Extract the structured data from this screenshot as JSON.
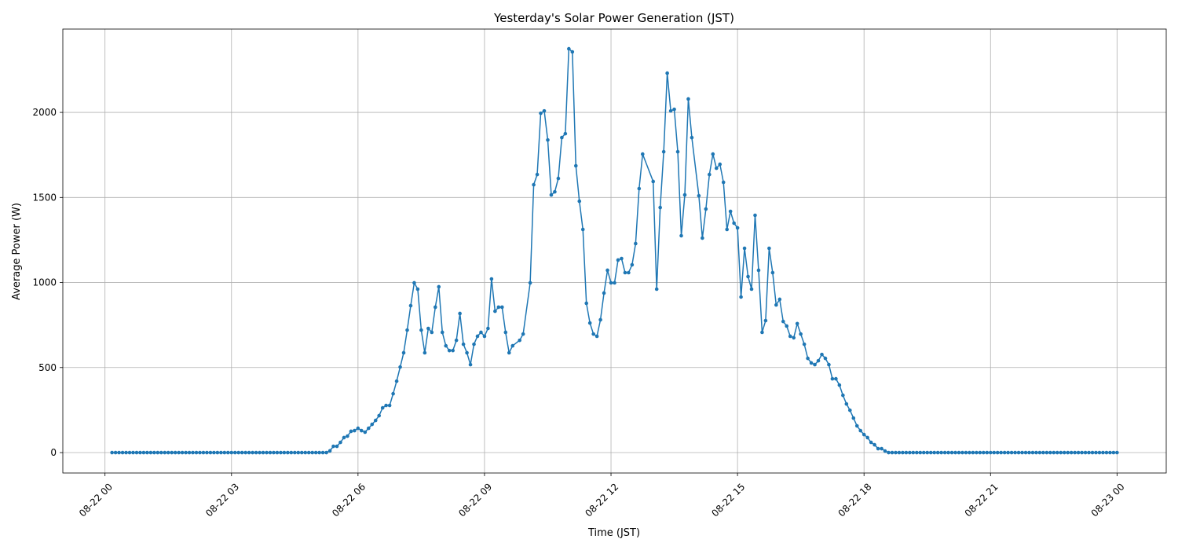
{
  "chart_data": {
    "type": "line",
    "title": "Yesterday's Solar Power Generation (JST)",
    "xlabel": "Time (JST)",
    "ylabel": "Average Power (W)",
    "color": "#1f77b4",
    "grid": true,
    "xlim": [
      -60,
      1510
    ],
    "ylim": [
      -120,
      2490
    ],
    "xticks": [
      {
        "value": 0,
        "label": "08-22 00"
      },
      {
        "value": 180,
        "label": "08-22 03"
      },
      {
        "value": 360,
        "label": "08-22 06"
      },
      {
        "value": 540,
        "label": "08-22 09"
      },
      {
        "value": 720,
        "label": "08-22 12"
      },
      {
        "value": 900,
        "label": "08-22 15"
      },
      {
        "value": 1080,
        "label": "08-22 18"
      },
      {
        "value": 1260,
        "label": "08-22 21"
      },
      {
        "value": 1440,
        "label": "08-23 00"
      }
    ],
    "yticks": [
      0,
      500,
      1000,
      1500,
      2000
    ],
    "x": [
      10,
      15,
      20,
      25,
      30,
      35,
      40,
      45,
      50,
      55,
      60,
      65,
      70,
      75,
      80,
      85,
      90,
      95,
      100,
      105,
      110,
      115,
      120,
      125,
      130,
      135,
      140,
      145,
      150,
      155,
      160,
      165,
      170,
      175,
      180,
      185,
      190,
      195,
      200,
      205,
      210,
      215,
      220,
      225,
      230,
      235,
      240,
      245,
      250,
      255,
      260,
      265,
      270,
      275,
      280,
      285,
      290,
      295,
      300,
      305,
      310,
      315,
      320,
      325,
      330,
      335,
      340,
      345,
      350,
      355,
      360,
      365,
      370,
      375,
      380,
      385,
      390,
      395,
      400,
      405,
      410,
      415,
      420,
      425,
      430,
      435,
      440,
      445,
      450,
      455,
      460,
      465,
      470,
      475,
      480,
      485,
      490,
      495,
      500,
      505,
      510,
      515,
      520,
      525,
      530,
      535,
      540,
      545,
      550,
      555,
      560,
      565,
      570,
      575,
      580,
      590,
      595,
      605,
      610,
      615,
      620,
      625,
      630,
      635,
      640,
      645,
      650,
      655,
      660,
      665,
      670,
      675,
      680,
      685,
      690,
      695,
      700,
      705,
      710,
      715,
      720,
      725,
      730,
      735,
      740,
      745,
      750,
      755,
      760,
      765,
      780,
      785,
      790,
      795,
      800,
      805,
      810,
      815,
      820,
      825,
      830,
      835,
      845,
      850,
      855,
      860,
      865,
      870,
      875,
      880,
      885,
      890,
      895,
      900,
      905,
      910,
      915,
      920,
      925,
      930,
      935,
      940,
      945,
      950,
      955,
      960,
      965,
      970,
      975,
      980,
      985,
      990,
      995,
      1000,
      1005,
      1010,
      1015,
      1020,
      1025,
      1030,
      1035,
      1040,
      1045,
      1050,
      1055,
      1060,
      1065,
      1070,
      1075,
      1080,
      1085,
      1090,
      1095,
      1100,
      1105,
      1110,
      1115,
      1120,
      1125,
      1130,
      1135,
      1140,
      1145,
      1150,
      1155,
      1160,
      1165,
      1170,
      1175,
      1180,
      1185,
      1190,
      1195,
      1200,
      1205,
      1210,
      1215,
      1220,
      1225,
      1230,
      1235,
      1240,
      1245,
      1250,
      1255,
      1260,
      1265,
      1270,
      1275,
      1280,
      1285,
      1290,
      1295,
      1300,
      1305,
      1310,
      1315,
      1320,
      1325,
      1330,
      1335,
      1340,
      1345,
      1350,
      1355,
      1360,
      1365,
      1370,
      1375,
      1380,
      1385,
      1390,
      1395,
      1400,
      1405,
      1410,
      1415,
      1420,
      1425,
      1430,
      1435,
      1440
    ],
    "values": [
      0,
      0,
      0,
      0,
      0,
      0,
      0,
      0,
      0,
      0,
      0,
      0,
      0,
      0,
      0,
      0,
      0,
      0,
      0,
      0,
      0,
      0,
      0,
      0,
      0,
      0,
      0,
      0,
      0,
      0,
      0,
      0,
      0,
      0,
      0,
      0,
      0,
      0,
      0,
      0,
      0,
      0,
      0,
      0,
      0,
      0,
      0,
      0,
      0,
      0,
      0,
      0,
      0,
      0,
      0,
      0,
      0,
      0,
      0,
      0,
      0,
      0,
      10,
      37,
      37,
      60,
      88,
      97,
      125,
      129,
      143,
      129,
      120,
      143,
      166,
      189,
      217,
      263,
      277,
      277,
      346,
      420,
      503,
      587,
      720,
      864,
      998,
      961,
      720,
      587,
      730,
      707,
      855,
      975,
      707,
      628,
      600,
      600,
      660,
      818,
      637,
      587,
      517,
      637,
      684,
      707,
      684,
      730,
      1021,
      831,
      855,
      855,
      707,
      587,
      628,
      660,
      697,
      998,
      1575,
      1635,
      1995,
      2009,
      1838,
      1515,
      1533,
      1612,
      1852,
      1875,
      2374,
      2356,
      1686,
      1478,
      1312,
      878,
      762,
      697,
      684,
      781,
      938,
      1072,
      998,
      998,
      1132,
      1141,
      1058,
      1058,
      1104,
      1229,
      1552,
      1755,
      1594,
      961,
      1441,
      1769,
      2231,
      2009,
      2018,
      1769,
      1275,
      1515,
      2079,
      1852,
      1510,
      1261,
      1432,
      1635,
      1755,
      1672,
      1695,
      1589,
      1312,
      1418,
      1349,
      1321,
      915,
      1201,
      1035,
      961,
      1395,
      1072,
      707,
      776,
      1201,
      1058,
      868,
      901,
      771,
      744,
      684,
      675,
      758,
      697,
      637,
      554,
      527,
      517,
      540,
      577,
      554,
      517,
      434,
      434,
      397,
      337,
      286,
      249,
      203,
      157,
      129,
      106,
      88,
      60,
      46,
      23,
      23,
      9,
      0,
      0,
      0,
      0,
      0,
      0,
      0,
      0,
      0,
      0,
      0,
      0,
      0,
      0,
      0,
      0,
      0,
      0,
      0,
      0,
      0,
      0,
      0,
      0,
      0,
      0,
      0,
      0,
      0,
      0,
      0,
      0,
      0,
      0,
      0,
      0,
      0,
      0,
      0,
      0,
      0,
      0,
      0,
      0,
      0,
      0,
      0,
      0,
      0,
      0,
      0,
      0,
      0,
      0,
      0,
      0,
      0,
      0,
      0,
      0,
      0,
      0,
      0,
      0,
      0,
      0
    ]
  }
}
